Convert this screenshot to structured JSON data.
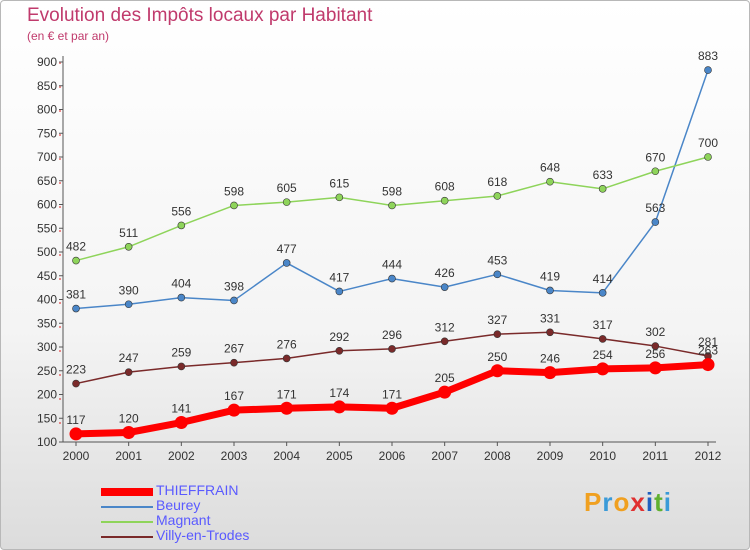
{
  "title": "Evolution des Impôts locaux par Habitant",
  "subtitle": "(en € et par an)",
  "logo": {
    "text": "Proxiti",
    "letters": [
      {
        "ch": "P",
        "color": "#f0a020"
      },
      {
        "ch": "r",
        "color": "#3a9ad8"
      },
      {
        "ch": "o",
        "color": "#f0a020"
      },
      {
        "ch": "x",
        "color": "#e03030"
      },
      {
        "ch": "i",
        "color": "#2060c0"
      },
      {
        "ch": "t",
        "color": "#60b030"
      },
      {
        "ch": "i",
        "color": "#3a9ad8"
      }
    ]
  },
  "chart_data": {
    "type": "line",
    "title": "Evolution des Impôts locaux par Habitant",
    "subtitle": "(en € et par an)",
    "x": [
      2000,
      2001,
      2002,
      2003,
      2004,
      2005,
      2006,
      2007,
      2008,
      2009,
      2010,
      2011,
      2012
    ],
    "ylim": [
      100,
      900
    ],
    "yticks": [
      100,
      150,
      200,
      250,
      300,
      350,
      400,
      450,
      500,
      550,
      600,
      650,
      700,
      750,
      800,
      850,
      900
    ],
    "grid": false,
    "legend_position": "bottom-left",
    "series": [
      {
        "name": "THIEFFRAIN",
        "color": "#ff0000",
        "values": [
          117,
          120,
          141,
          167,
          171,
          174,
          171,
          205,
          250,
          246,
          254,
          256,
          263
        ]
      },
      {
        "name": "Beurey",
        "color": "#4a86c8",
        "values": [
          381,
          390,
          404,
          398,
          477,
          417,
          444,
          426,
          453,
          419,
          414,
          563,
          883
        ]
      },
      {
        "name": "Magnant",
        "color": "#8ed45a",
        "values": [
          482,
          511,
          556,
          598,
          605,
          615,
          598,
          608,
          618,
          648,
          633,
          670,
          700
        ]
      },
      {
        "name": "Villy-en-Trodes",
        "color": "#7a2a2a",
        "values": [
          223,
          247,
          259,
          267,
          276,
          292,
          296,
          312,
          327,
          331,
          317,
          302,
          281
        ]
      }
    ]
  }
}
